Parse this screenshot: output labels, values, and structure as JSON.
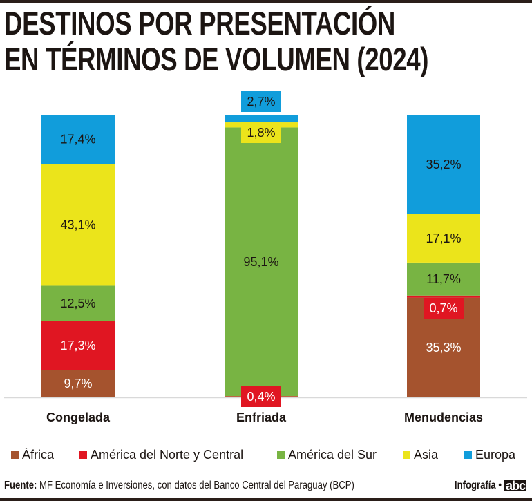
{
  "title_lines": [
    "DESTINOS POR PRESENTACIÓN",
    "EN TÉRMINOS DE VOLUMEN (2024)"
  ],
  "colors": {
    "Africa": "#a5532e",
    "America del Norte y Central": "#e01622",
    "America del Sur": "#78b443",
    "Asia": "#ebe41b",
    "Europa": "#119ddb"
  },
  "chart_data": {
    "type": "bar",
    "stacked": true,
    "normalized": true,
    "title": "DESTINOS POR PRESENTACIÓN EN TÉRMINOS DE VOLUMEN (2024)",
    "xlabel": "",
    "ylabel": "",
    "ylim": [
      0,
      100
    ],
    "grid": false,
    "legend_position": "bottom",
    "categories": [
      "Congelada",
      "Enfriada",
      "Menudencias"
    ],
    "series": [
      {
        "name": "África",
        "color": "#a5532e",
        "values": [
          9.7,
          0,
          35.3
        ],
        "labels": [
          "9,7%",
          "",
          "35,3%"
        ]
      },
      {
        "name": "América del Norte y Central",
        "color": "#e01622",
        "values": [
          17.3,
          0.4,
          0.7
        ],
        "labels": [
          "17,3%",
          "0,4%",
          "0,7%"
        ]
      },
      {
        "name": "América del Sur",
        "color": "#78b443",
        "values": [
          12.5,
          95.1,
          11.7
        ],
        "labels": [
          "12,5%",
          "95,1%",
          "11,7%"
        ]
      },
      {
        "name": "Asia",
        "color": "#ebe41b",
        "values": [
          43.1,
          1.8,
          17.1
        ],
        "labels": [
          "43,1%",
          "1,8%",
          "17,1%"
        ]
      },
      {
        "name": "Europa",
        "color": "#119ddb",
        "values": [
          17.4,
          2.7,
          35.2
        ],
        "labels": [
          "17,4%",
          "2,7%",
          "35,2%"
        ]
      }
    ]
  },
  "legend": [
    {
      "label": "África",
      "color": "#a5532e"
    },
    {
      "label": "América del Norte y Central",
      "color": "#e01622"
    },
    {
      "label": "América del Sur",
      "color": "#78b443"
    },
    {
      "label": "Asia",
      "color": "#ebe41b"
    },
    {
      "label": "Europa",
      "color": "#119ddb"
    }
  ],
  "footer": {
    "source_label": "Fuente:",
    "source_text": " MF Economía e Inversiones, con datos del Banco Central del Paraguay (BCP)",
    "credit": "Infografía •",
    "logo": "abc"
  }
}
